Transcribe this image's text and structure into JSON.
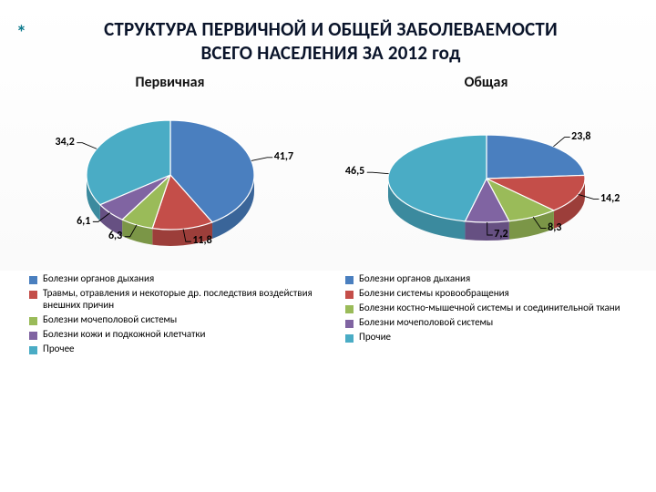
{
  "title_line1": "СТРУКТУРА ПЕРВИЧНОЙ И ОБЩЕЙ ЗАБОЛЕВАЕМОСТИ",
  "title_line2": "ВСЕГО НАСЕЛЕНИЯ ЗА 2012 год",
  "asterisk": "*",
  "charts": {
    "primary": {
      "title": "Первичная",
      "type": "pie",
      "style": "3d",
      "slices": [
        {
          "label": "Болезни органов дыхания",
          "value": 41.7,
          "text": "41,7",
          "color": "#4a7fbf",
          "side": "#3a6599"
        },
        {
          "label": "Травмы, отравления и некоторые др. последствия воздействия внешних причин",
          "value": 11.8,
          "text": "11,8",
          "color": "#c44e49",
          "side": "#9c3e3a"
        },
        {
          "label": "Болезни мочеполовой системы",
          "value": 6.3,
          "text": "6,3",
          "color": "#9abb59",
          "side": "#7b9647"
        },
        {
          "label": "Болезни кожи и подкожной клетчатки",
          "value": 6.1,
          "text": "6,1",
          "color": "#8064a2",
          "side": "#665082"
        },
        {
          "label": "Прочее",
          "value": 34.2,
          "text": "34,2",
          "color": "#4aacc5",
          "side": "#3b8a9e"
        }
      ],
      "label_fontsize": 12,
      "label_color": "#000000"
    },
    "general": {
      "title": "Общая",
      "type": "pie",
      "style": "3d",
      "slices": [
        {
          "label": "Болезни органов дыхания",
          "value": 23.8,
          "text": "23,8",
          "color": "#4a7fbf",
          "side": "#3a6599"
        },
        {
          "label": "Болезни системы кровообращения",
          "value": 14.2,
          "text": "14,2",
          "color": "#c44e49",
          "side": "#9c3e3a"
        },
        {
          "label": "Болезни костно-мышечной системы и соединительной ткани",
          "value": 8.3,
          "text": "8,3",
          "color": "#9abb59",
          "side": "#7b9647"
        },
        {
          "label": "Болезни мочеполовой системы",
          "value": 7.2,
          "text": "7,2",
          "color": "#8064a2",
          "side": "#665082"
        },
        {
          "label": "Прочие",
          "value": 46.5,
          "text": "46,5",
          "color": "#4aacc5",
          "side": "#3b8a9e"
        }
      ],
      "label_fontsize": 12,
      "label_color": "#000000"
    }
  }
}
